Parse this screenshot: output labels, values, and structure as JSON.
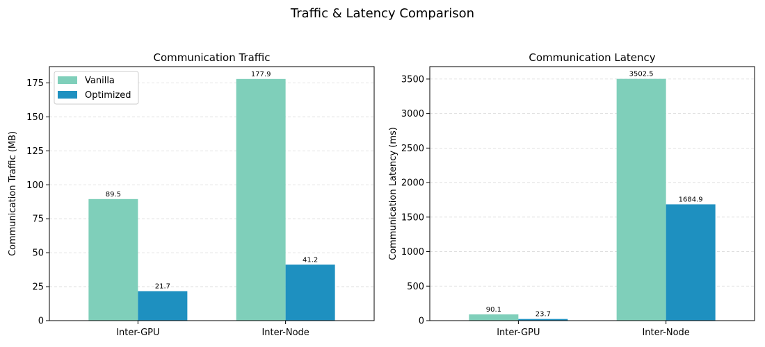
{
  "figure": {
    "title": "Traffic & Latency Comparison"
  },
  "chart_data": [
    {
      "type": "bar",
      "title": "Communication Traffic",
      "xlabel": "",
      "ylabel": "Communication Traffic (MB)",
      "categories": [
        "Inter-GPU",
        "Inter-Node"
      ],
      "series": [
        {
          "name": "Vanilla",
          "values": [
            89.5,
            177.9
          ],
          "color": "#7fcfba",
          "labels": [
            "89.5",
            "177.9"
          ]
        },
        {
          "name": "Optimized",
          "values": [
            21.7,
            41.2
          ],
          "color": "#1e90c0",
          "labels": [
            "21.7",
            "41.2"
          ]
        }
      ],
      "ylim": [
        0,
        187
      ],
      "yticks": [
        0,
        25,
        50,
        75,
        100,
        125,
        150,
        175
      ],
      "grid": "y-dashed",
      "legend": "top-left"
    },
    {
      "type": "bar",
      "title": "Communication Latency",
      "xlabel": "",
      "ylabel": "Communication Latency (ms)",
      "categories": [
        "Inter-GPU",
        "Inter-Node"
      ],
      "series": [
        {
          "name": "Vanilla",
          "values": [
            90.1,
            3502.5
          ],
          "color": "#7fcfba",
          "labels": [
            "90.1",
            "3502.5"
          ]
        },
        {
          "name": "Optimized",
          "values": [
            23.7,
            1684.9
          ],
          "color": "#1e90c0",
          "labels": [
            "23.7",
            "1684.9"
          ]
        }
      ],
      "ylim": [
        0,
        3680
      ],
      "yticks": [
        0,
        500,
        1000,
        1500,
        2000,
        2500,
        3000,
        3500
      ],
      "grid": "y-dashed",
      "legend": "none"
    }
  ]
}
